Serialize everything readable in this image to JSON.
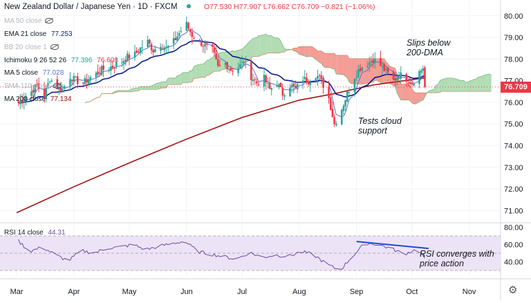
{
  "header": {
    "symbol": "New Zealand Dollar / Japanese Yen · 1D · FXCM",
    "ohlc": "O77.530 H77.907 L76.662 C76.709 −0.821 (−1.06%)"
  },
  "legend": [
    {
      "label": "MA 50 close",
      "value": "",
      "value2": "",
      "hidden": true
    },
    {
      "label": "EMA 21 close",
      "value": "77.253",
      "value2": "",
      "hidden": false
    },
    {
      "label": "BB 20 close 1",
      "value": "",
      "value2": "",
      "hidden": true
    },
    {
      "label": "Ichimoku 9 26 52 26",
      "value": "77.396",
      "value2": "76.608",
      "hidden": false
    },
    {
      "label": "MA 5 close",
      "value": "77.028",
      "value2": "",
      "hidden": false
    },
    {
      "label": "SMA 110 close",
      "value": "",
      "value2": "",
      "hidden": true
    },
    {
      "label": "MA 200 close",
      "value": "77.134",
      "value2": "",
      "hidden": false
    }
  ],
  "annotations": {
    "slips": "Slips below\n200-DMA",
    "cloud": "Tests cloud\nsupport",
    "rsi": "RSI converges with\nprice action"
  },
  "colors": {
    "up": "#26a69a",
    "down": "#f23645",
    "ema": "#0d1b8f",
    "ma5": "#5b6fd6",
    "ma200": "#a11212",
    "cloud_bull": "#a5d6a7",
    "cloud_bear": "#f28b82",
    "rsi_line": "#6b4aa0",
    "rsi_band": "#ece3f7",
    "trend": "#1e4bd8"
  },
  "chart_data": [
    {
      "type": "candlestick",
      "title": "New Zealand Dollar / Japanese Yen · 1D · FXCM",
      "ylim": [
        70.5,
        80.6
      ],
      "yticks": [
        71.0,
        72.0,
        73.0,
        74.0,
        75.0,
        76.0,
        77.0,
        78.0,
        79.0,
        80.0
      ],
      "x_months": [
        "Mar",
        "Apr",
        "May",
        "Jun",
        "Jul",
        "Aug",
        "Sep",
        "Oct",
        "Nov"
      ],
      "last_price": "76.709",
      "close_trail": [
        [
          "Mar 1",
          75.9
        ],
        [
          "Mar 5",
          76.2
        ],
        [
          "Mar 9",
          76.5
        ],
        [
          "Mar 12",
          76.8
        ],
        [
          "Mar 16",
          76.3
        ],
        [
          "Mar 19",
          77.1
        ],
        [
          "Mar 23",
          76.7
        ],
        [
          "Mar 26",
          76.6
        ],
        [
          "Mar 30",
          77.2
        ],
        [
          "Apr 2",
          77.0
        ],
        [
          "Apr 6",
          76.9
        ],
        [
          "Apr 9",
          77.1
        ],
        [
          "Apr 13",
          77.3
        ],
        [
          "Apr 16",
          77.5
        ],
        [
          "Apr 20",
          77.6
        ],
        [
          "Apr 23",
          77.7
        ],
        [
          "Apr 27",
          77.9
        ],
        [
          "Apr 30",
          78.1
        ],
        [
          "May 4",
          78.2
        ],
        [
          "May 7",
          78.5
        ],
        [
          "May 11",
          78.8
        ],
        [
          "May 14",
          78.4
        ],
        [
          "May 18",
          78.7
        ],
        [
          "May 21",
          78.5
        ],
        [
          "May 25",
          78.8
        ],
        [
          "May 28",
          79.2
        ],
        [
          "Jun 1",
          79.6
        ],
        [
          "Jun 4",
          79.1
        ],
        [
          "Jun 8",
          78.8
        ],
        [
          "Jun 11",
          78.6
        ],
        [
          "Jun 15",
          78.4
        ],
        [
          "Jun 18",
          77.6
        ],
        [
          "Jun 22",
          77.8
        ],
        [
          "Jun 25",
          77.5
        ],
        [
          "Jun 29",
          77.6
        ],
        [
          "Jul 2",
          77.9
        ],
        [
          "Jul 6",
          77.2
        ],
        [
          "Jul 9",
          76.9
        ],
        [
          "Jul 13",
          77.1
        ],
        [
          "Jul 16",
          76.6
        ],
        [
          "Jul 20",
          76.9
        ],
        [
          "Jul 23",
          76.4
        ],
        [
          "Jul 27",
          76.8
        ],
        [
          "Jul 30",
          76.6
        ],
        [
          "Aug 3",
          77.1
        ],
        [
          "Aug 6",
          77.0
        ],
        [
          "Aug 10",
          77.3
        ],
        [
          "Aug 13",
          77.0
        ],
        [
          "Aug 17",
          76.2
        ],
        [
          "Aug 20",
          75.0
        ],
        [
          "Aug 24",
          75.7
        ],
        [
          "Aug 27",
          76.4
        ],
        [
          "Aug 31",
          77.2
        ],
        [
          "Sep 3",
          77.6
        ],
        [
          "Sep 7",
          77.8
        ],
        [
          "Sep 10",
          78.0
        ],
        [
          "Sep 14",
          77.7
        ],
        [
          "Sep 17",
          77.4
        ],
        [
          "Sep 21",
          77.0
        ],
        [
          "Sep 24",
          77.3
        ],
        [
          "Sep 28",
          77.1
        ],
        [
          "Oct 1",
          76.9
        ],
        [
          "Oct 4",
          77.3
        ],
        [
          "Oct 7",
          77.6
        ],
        [
          "Oct 8",
          76.709
        ]
      ],
      "ma200_trail": [
        [
          "Mar 1",
          70.9
        ],
        [
          "Apr 1",
          72.1
        ],
        [
          "May 1",
          73.2
        ],
        [
          "Jun 1",
          74.3
        ],
        [
          "Jul 1",
          75.3
        ],
        [
          "Aug 1",
          76.1
        ],
        [
          "Aug 20",
          76.4
        ],
        [
          "Sep 10",
          76.8
        ],
        [
          "Oct 8",
          77.13
        ]
      ],
      "annotations": [
        "Slips below\n200-DMA",
        "Tests cloud\nsupport"
      ]
    },
    {
      "type": "line",
      "title": "RSI 14 close",
      "value": "44.31",
      "ylim": [
        22,
        82
      ],
      "yticks": [
        40.0,
        60.0,
        80.0
      ],
      "band": [
        30,
        70
      ],
      "x": [
        "Mar 1",
        "Mar 8",
        "Mar 15",
        "Mar 22",
        "Mar 29",
        "Apr 5",
        "Apr 12",
        "Apr 19",
        "Apr 26",
        "May 3",
        "May 10",
        "May 17",
        "May 24",
        "May 31",
        "Jun 7",
        "Jun 14",
        "Jun 21",
        "Jun 28",
        "Jul 5",
        "Jul 12",
        "Jul 19",
        "Jul 26",
        "Aug 2",
        "Aug 9",
        "Aug 16",
        "Aug 23",
        "Aug 30",
        "Sep 6",
        "Sep 13",
        "Sep 20",
        "Sep 27",
        "Oct 4",
        "Oct 8"
      ],
      "values": [
        66,
        52,
        57,
        48,
        41,
        53,
        50,
        56,
        57,
        60,
        54,
        58,
        61,
        64,
        52,
        49,
        46,
        43,
        51,
        45,
        48,
        46,
        52,
        48,
        37,
        30,
        47,
        62,
        60,
        55,
        49,
        55,
        44.31
      ],
      "trendline": [
        [
          "Sep 1",
          63.5
        ],
        [
          "Oct 10",
          55.5
        ]
      ],
      "annotation": "RSI converges with\nprice action"
    }
  ]
}
